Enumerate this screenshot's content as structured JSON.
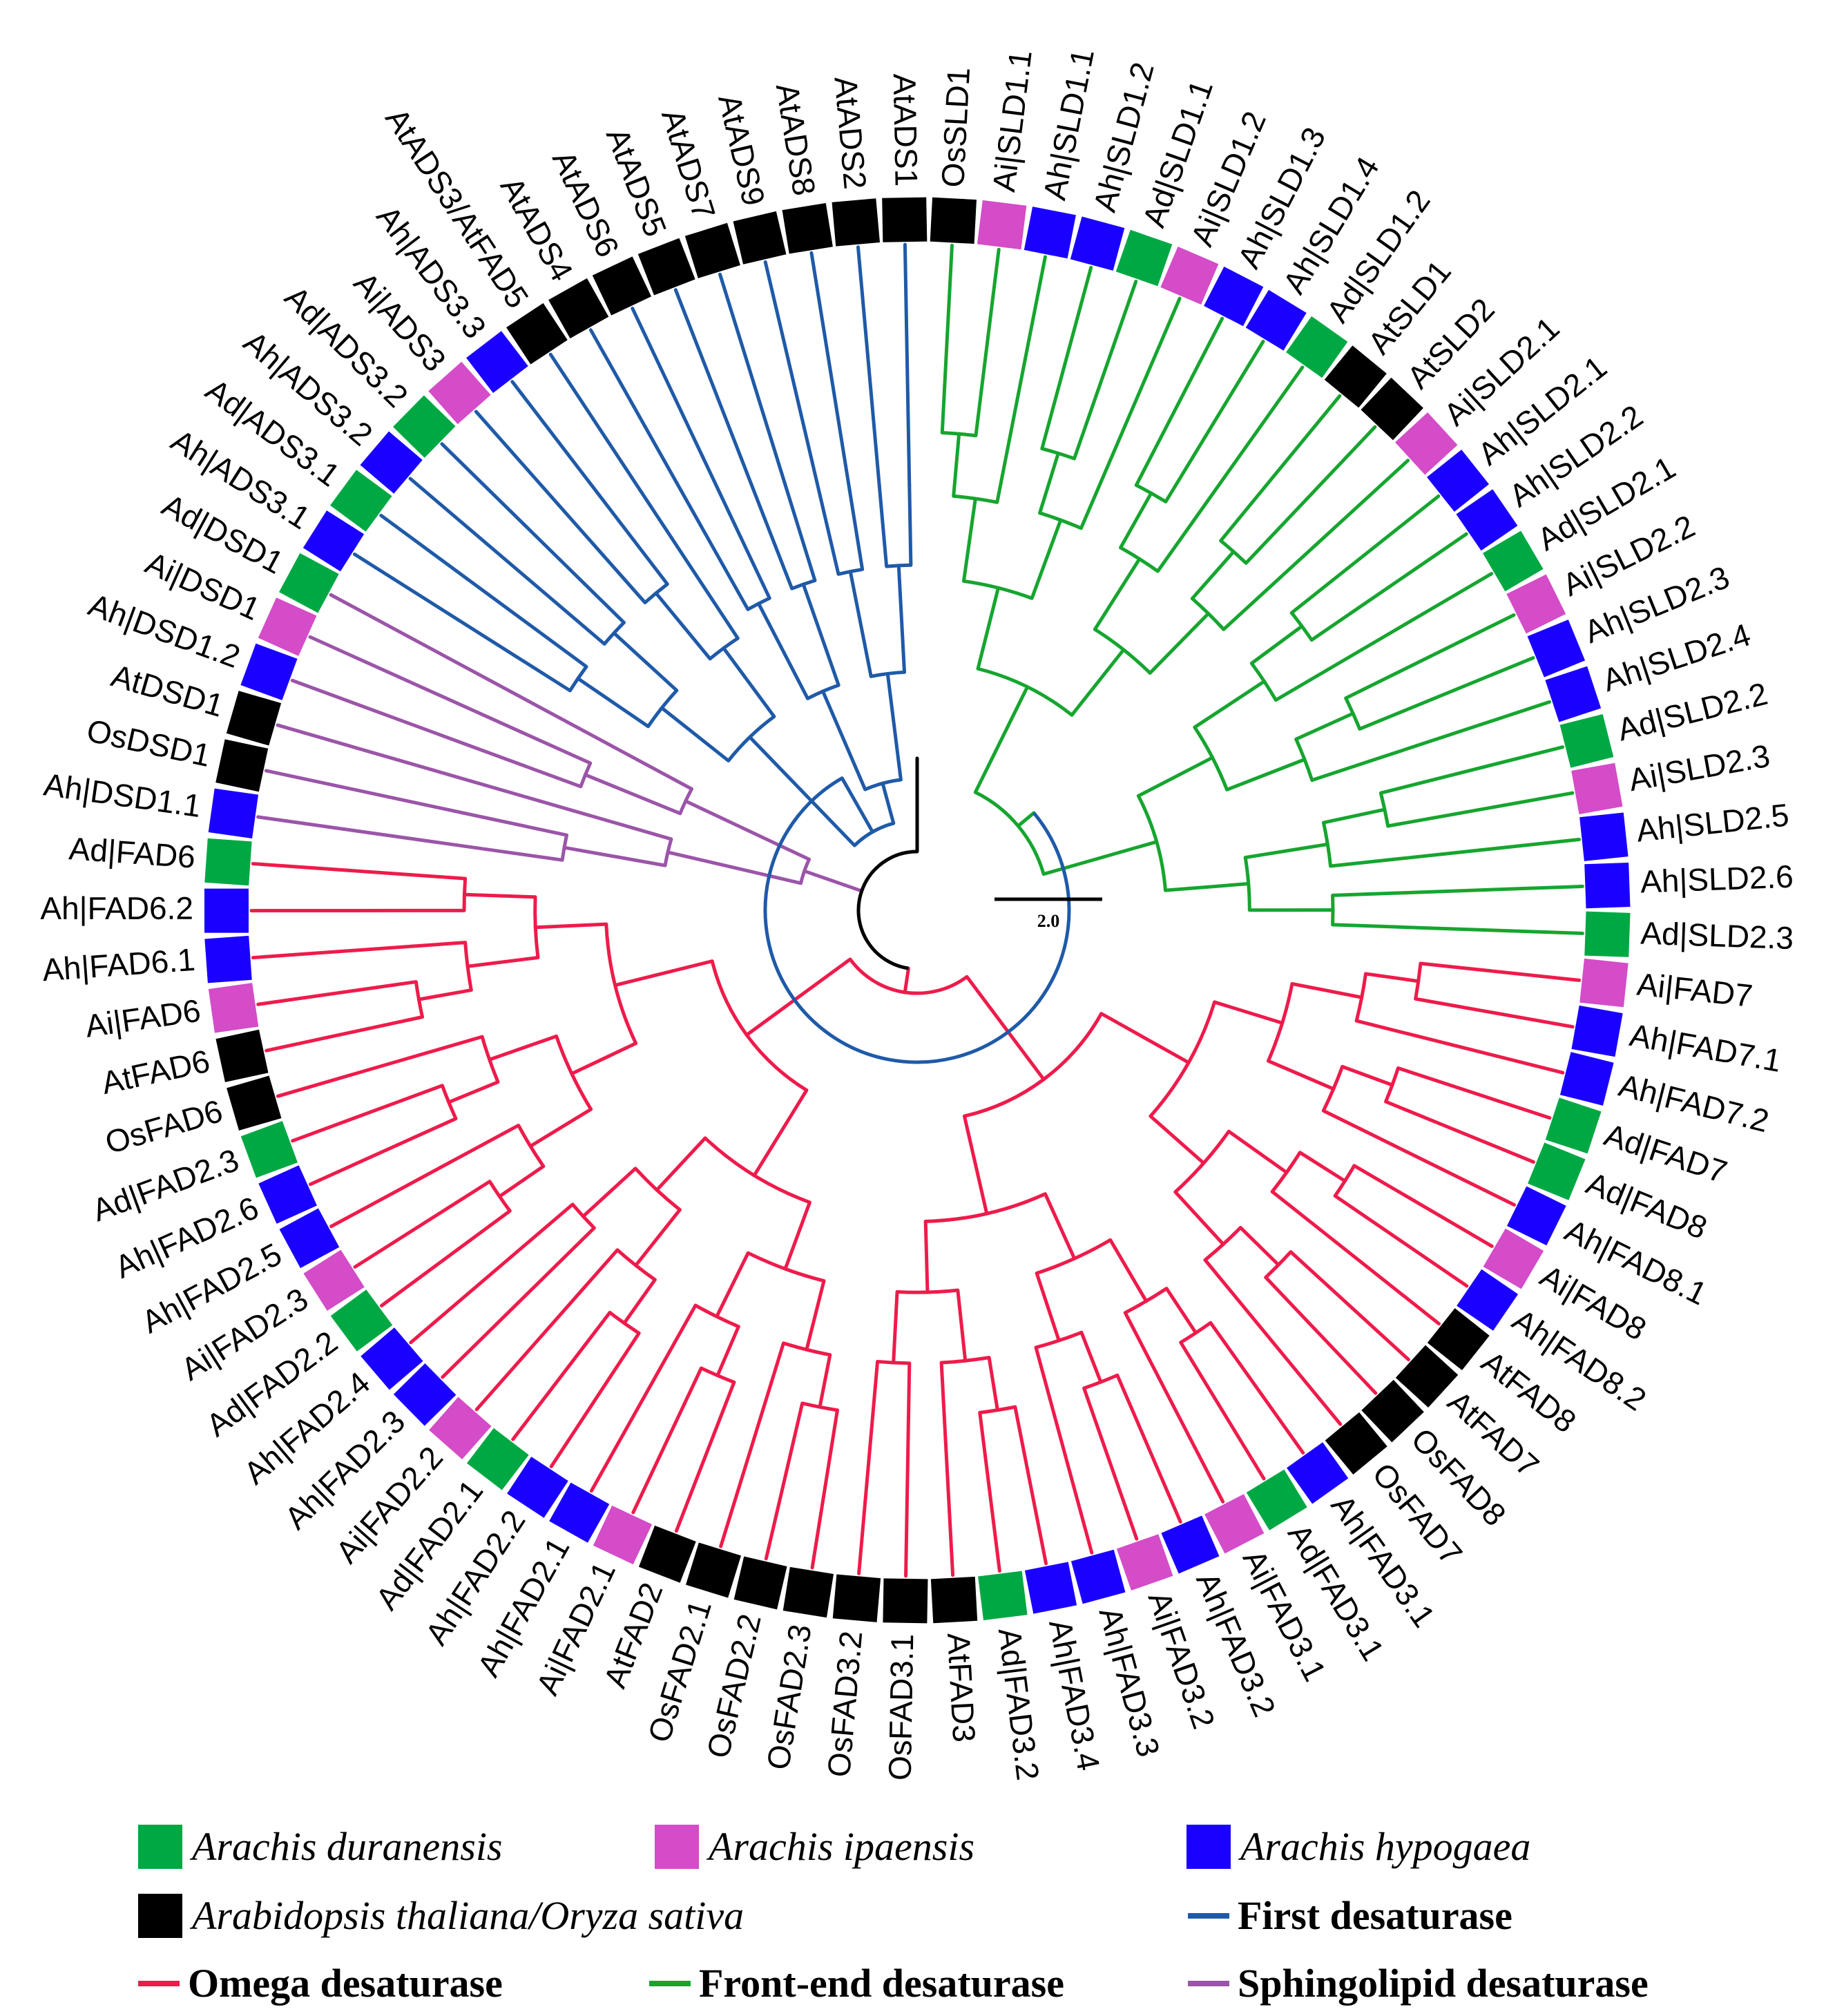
{
  "colors": {
    "Ad": "#00a844",
    "Ai": "#d44cc8",
    "Ah": "#1a00ff",
    "AtOs": "#000000",
    "first": "#1f5aa8",
    "omega": "#ee1b4b",
    "frontend": "#16a52f",
    "sphingo": "#9b55a8",
    "root": "#000000"
  },
  "tree": {
    "leaves": [
      {
        "label": "OsSLD1",
        "species": "AtOs"
      },
      {
        "label": "Ai|SLD1.1",
        "species": "Ai"
      },
      {
        "label": "Ah|SLD1.1",
        "species": "Ah"
      },
      {
        "label": "Ah|SLD1.2",
        "species": "Ah"
      },
      {
        "label": "Ad|SLD1.1",
        "species": "Ad"
      },
      {
        "label": "Ai|SLD1.2",
        "species": "Ai"
      },
      {
        "label": "Ah|SLD1.3",
        "species": "Ah"
      },
      {
        "label": "Ah|SLD1.4",
        "species": "Ah"
      },
      {
        "label": "Ad|SLD1.2",
        "species": "Ad"
      },
      {
        "label": "AtSLD1",
        "species": "AtOs"
      },
      {
        "label": "AtSLD2",
        "species": "AtOs"
      },
      {
        "label": "Ai|SLD2.1",
        "species": "Ai"
      },
      {
        "label": "Ah|SLD2.1",
        "species": "Ah"
      },
      {
        "label": "Ah|SLD2.2",
        "species": "Ah"
      },
      {
        "label": "Ad|SLD2.1",
        "species": "Ad"
      },
      {
        "label": "Ai|SLD2.2",
        "species": "Ai"
      },
      {
        "label": "Ah|SLD2.3",
        "species": "Ah"
      },
      {
        "label": "Ah|SLD2.4",
        "species": "Ah"
      },
      {
        "label": "Ad|SLD2.2",
        "species": "Ad"
      },
      {
        "label": "Ai|SLD2.3",
        "species": "Ai"
      },
      {
        "label": "Ah|SLD2.5",
        "species": "Ah"
      },
      {
        "label": "Ah|SLD2.6",
        "species": "Ah"
      },
      {
        "label": "Ad|SLD2.3",
        "species": "Ad"
      },
      {
        "label": "Ai|FAD7",
        "species": "Ai"
      },
      {
        "label": "Ah|FAD7.1",
        "species": "Ah"
      },
      {
        "label": "Ah|FAD7.2",
        "species": "Ah"
      },
      {
        "label": "Ad|FAD7",
        "species": "Ad"
      },
      {
        "label": "Ad|FAD8",
        "species": "Ad"
      },
      {
        "label": "Ah|FAD8.1",
        "species": "Ah"
      },
      {
        "label": "Ai|FAD8",
        "species": "Ai"
      },
      {
        "label": "Ah|FAD8.2",
        "species": "Ah"
      },
      {
        "label": "AtFAD8",
        "species": "AtOs"
      },
      {
        "label": "AtFAD7",
        "species": "AtOs"
      },
      {
        "label": "OsFAD8",
        "species": "AtOs"
      },
      {
        "label": "OsFAD7",
        "species": "AtOs"
      },
      {
        "label": "Ah|FAD3.1",
        "species": "Ah"
      },
      {
        "label": "Ad|FAD3.1",
        "species": "Ad"
      },
      {
        "label": "Ai|FAD3.1",
        "species": "Ai"
      },
      {
        "label": "Ah|FAD3.2",
        "species": "Ah"
      },
      {
        "label": "Ai|FAD3.2",
        "species": "Ai"
      },
      {
        "label": "Ah|FAD3.3",
        "species": "Ah"
      },
      {
        "label": "Ah|FAD3.4",
        "species": "Ah"
      },
      {
        "label": "Ad|FAD3.2",
        "species": "Ad"
      },
      {
        "label": "AtFAD3",
        "species": "AtOs"
      },
      {
        "label": "OsFAD3.1",
        "species": "AtOs"
      },
      {
        "label": "OsFAD3.2",
        "species": "AtOs"
      },
      {
        "label": "OsFAD2.3",
        "species": "AtOs"
      },
      {
        "label": "OsFAD2.2",
        "species": "AtOs"
      },
      {
        "label": "OsFAD2.1",
        "species": "AtOs"
      },
      {
        "label": "AtFAD2",
        "species": "AtOs"
      },
      {
        "label": "Ai|FAD2.1",
        "species": "Ai"
      },
      {
        "label": "Ah|FAD2.1",
        "species": "Ah"
      },
      {
        "label": "Ah|FAD2.2",
        "species": "Ah"
      },
      {
        "label": "Ad|FAD2.1",
        "species": "Ad"
      },
      {
        "label": "Ai|FAD2.2",
        "species": "Ai"
      },
      {
        "label": "Ah|FAD2.3",
        "species": "Ah"
      },
      {
        "label": "Ah|FAD2.4",
        "species": "Ah"
      },
      {
        "label": "Ad|FAD2.2",
        "species": "Ad"
      },
      {
        "label": "Ai|FAD2.3",
        "species": "Ai"
      },
      {
        "label": "Ah|FAD2.5",
        "species": "Ah"
      },
      {
        "label": "Ah|FAD2.6",
        "species": "Ah"
      },
      {
        "label": "Ad|FAD2.3",
        "species": "Ad"
      },
      {
        "label": "OsFAD6",
        "species": "AtOs"
      },
      {
        "label": "AtFAD6",
        "species": "AtOs"
      },
      {
        "label": "Ai|FAD6",
        "species": "Ai"
      },
      {
        "label": "Ah|FAD6.1",
        "species": "Ah"
      },
      {
        "label": "Ah|FAD6.2",
        "species": "Ah"
      },
      {
        "label": "Ad|FAD6",
        "species": "Ad"
      },
      {
        "label": "Ah|DSD1.1",
        "species": "Ah"
      },
      {
        "label": "OsDSD1",
        "species": "AtOs"
      },
      {
        "label": "AtDSD1",
        "species": "AtOs"
      },
      {
        "label": "Ah|DSD1.2",
        "species": "Ah"
      },
      {
        "label": "Ai|DSD1",
        "species": "Ai"
      },
      {
        "label": "Ad|DSD1",
        "species": "Ad"
      },
      {
        "label": "Ah|ADS3.1",
        "species": "Ah"
      },
      {
        "label": "Ad|ADS3.1",
        "species": "Ad"
      },
      {
        "label": "Ah|ADS3.2",
        "species": "Ah"
      },
      {
        "label": "Ad|ADS3.2",
        "species": "Ad"
      },
      {
        "label": "Ai|ADS3",
        "species": "Ai"
      },
      {
        "label": "Ah|ADS3.3",
        "species": "Ah"
      },
      {
        "label": "AtADS3/AtFAD5",
        "species": "AtOs"
      },
      {
        "label": "AtADS4",
        "species": "AtOs"
      },
      {
        "label": "AtADS6",
        "species": "AtOs"
      },
      {
        "label": "AtADS5",
        "species": "AtOs"
      },
      {
        "label": "AtADS7",
        "species": "AtOs"
      },
      {
        "label": "AtADS9",
        "species": "AtOs"
      },
      {
        "label": "AtADS8",
        "species": "AtOs"
      },
      {
        "label": "AtADS2",
        "species": "AtOs"
      },
      {
        "label": "AtADS1",
        "species": "AtOs"
      }
    ],
    "clades": [
      {
        "name": "first",
        "first": 81,
        "last": 88,
        "root_radius": 0.12
      },
      {
        "name": "frontend",
        "first": 0,
        "last": 22,
        "root_radius": 0.12
      },
      {
        "name": "omega",
        "first": 23,
        "last": 67,
        "root_radius": 0.04
      },
      {
        "name": "sphingo",
        "first": 68,
        "last": 73,
        "root_radius": 0.1
      },
      {
        "name": "first",
        "first": 74,
        "last": 80,
        "root_radius": 0.3
      }
    ],
    "scale_bar": "2.0"
  },
  "legend": {
    "species": [
      {
        "key": "Ad",
        "label": "Arachis duranensis"
      },
      {
        "key": "Ai",
        "label": "Arachis ipaensis"
      },
      {
        "key": "Ah",
        "label": "Arachis hypogaea"
      },
      {
        "key": "AtOs",
        "label": "Arabidopsis thaliana/Oryza sativa"
      }
    ],
    "types": [
      {
        "key": "first",
        "label": "First desaturase"
      },
      {
        "key": "omega",
        "label": "Omega desaturase"
      },
      {
        "key": "frontend",
        "label": "Front-end desaturase"
      },
      {
        "key": "sphingo",
        "label": "Sphingolipid desaturase"
      }
    ]
  }
}
